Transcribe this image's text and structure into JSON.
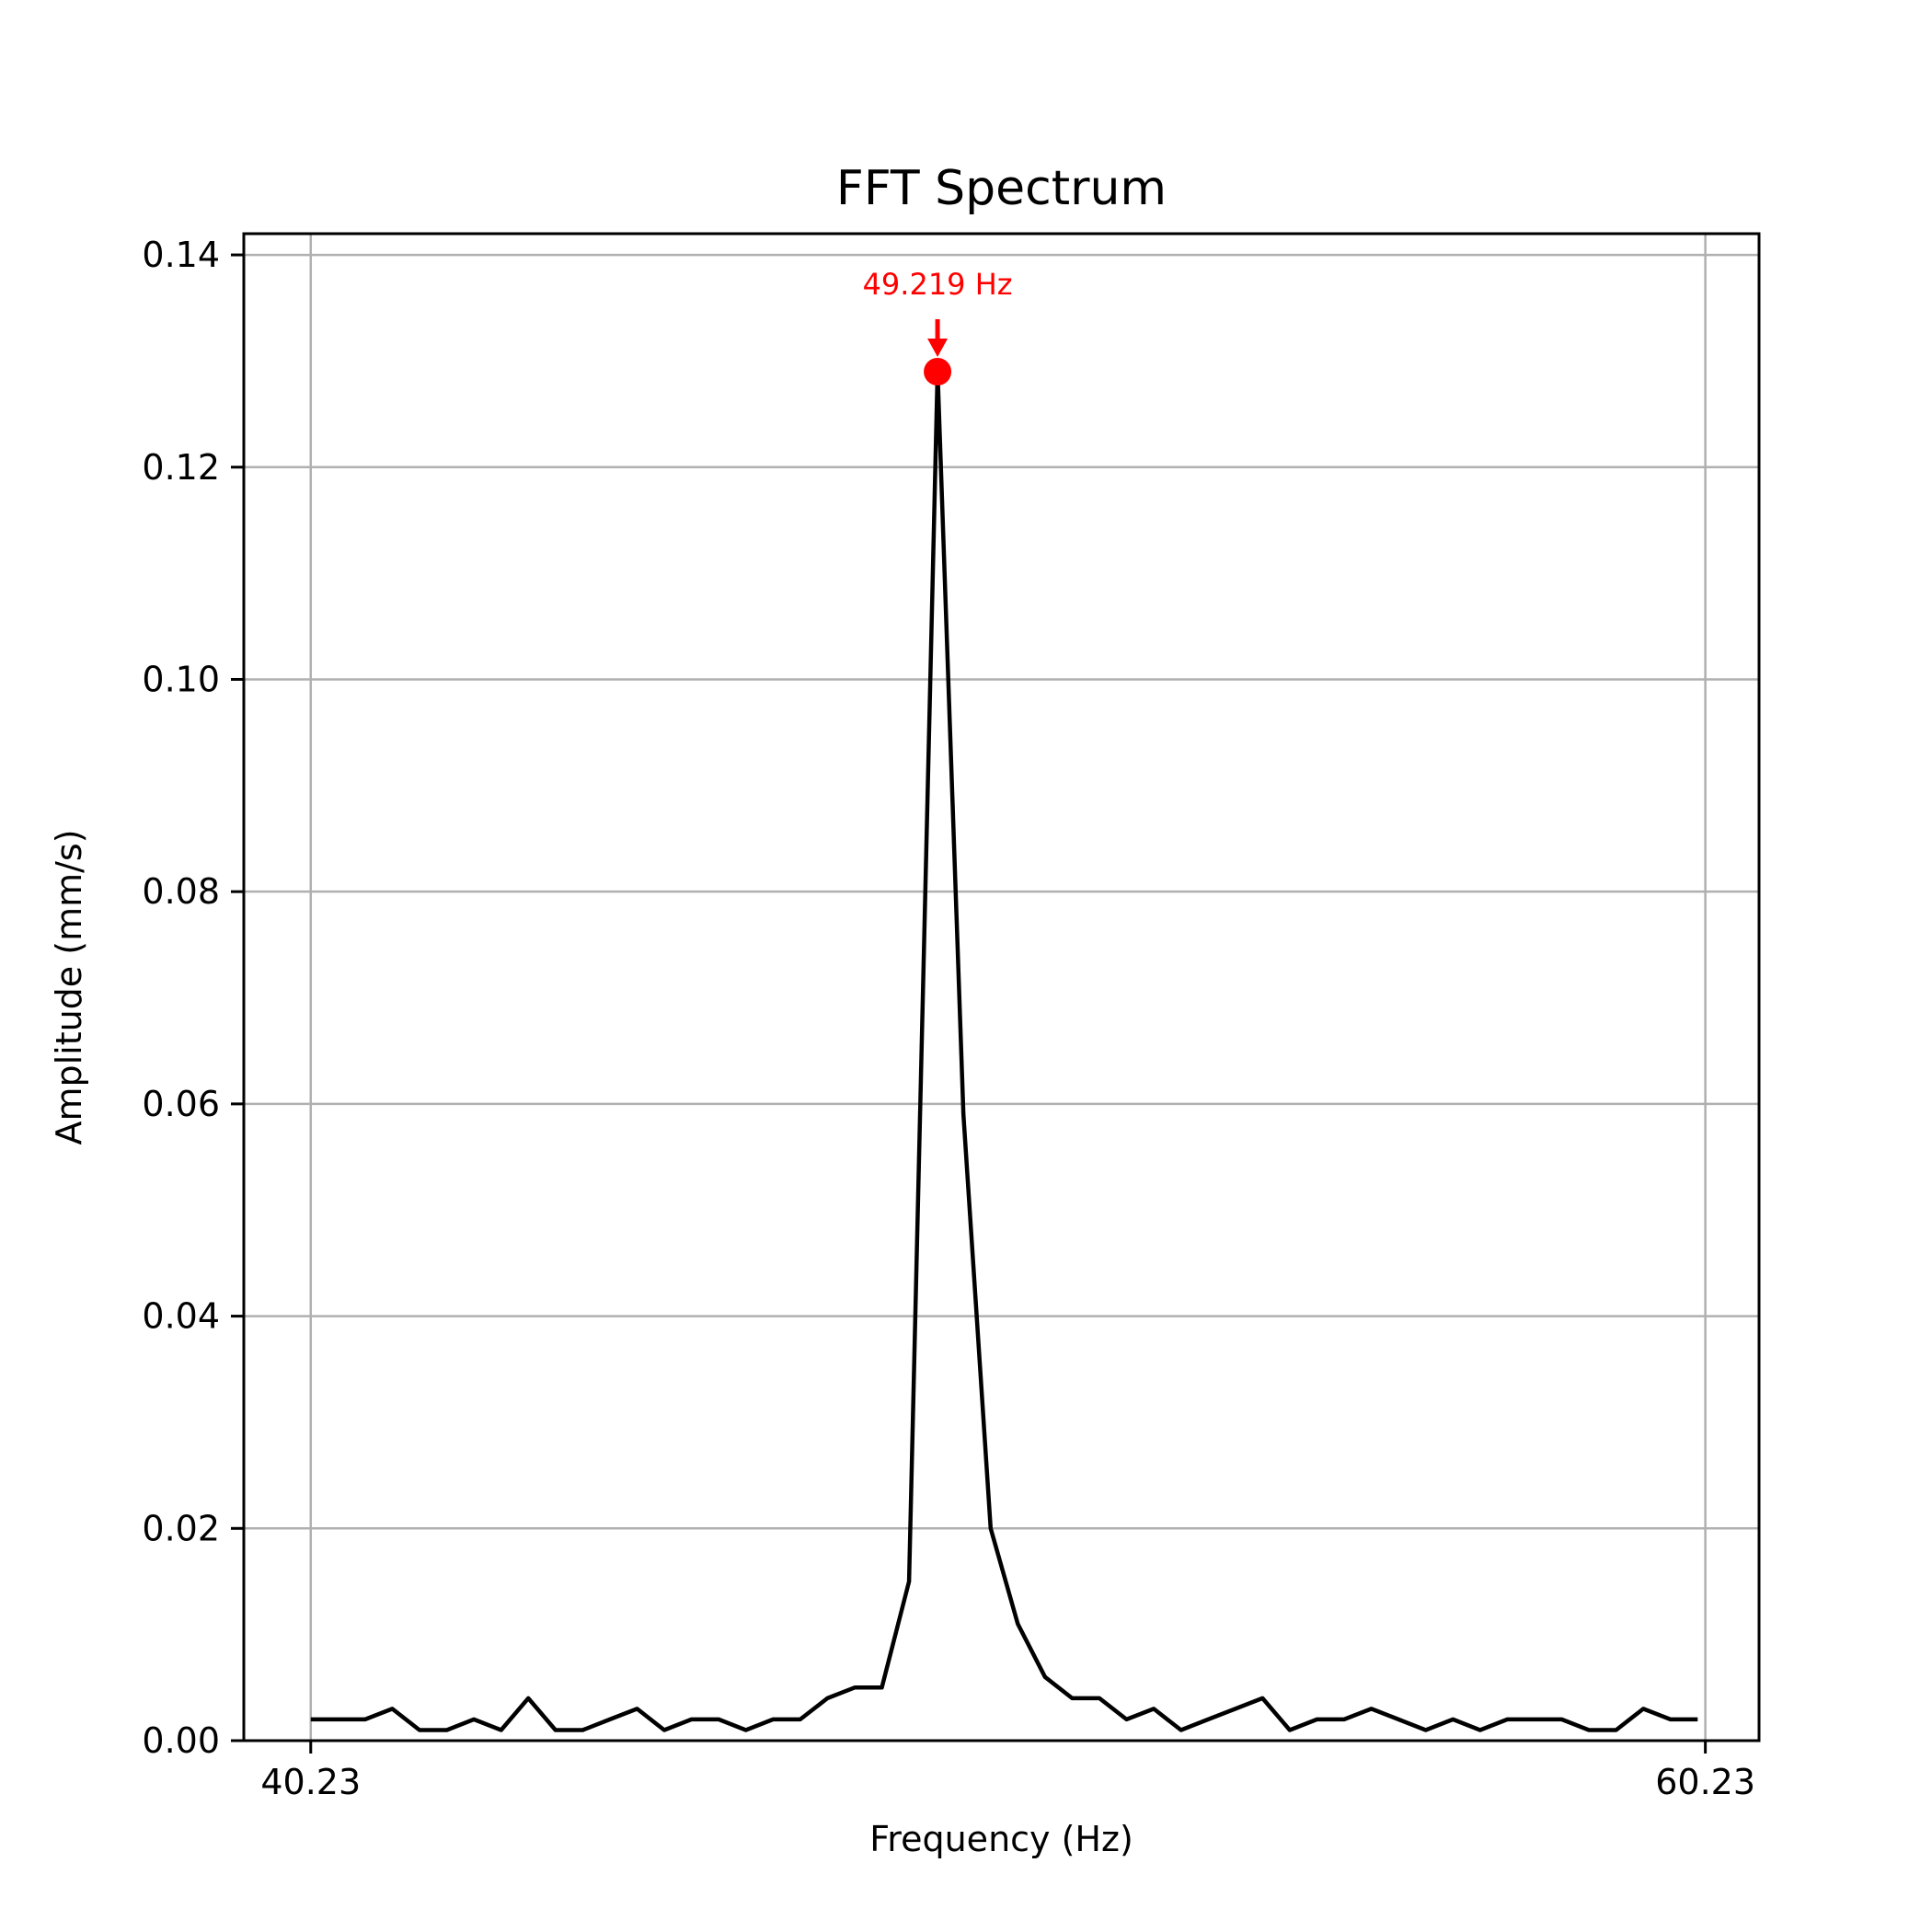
{
  "chart_data": {
    "type": "line",
    "title": "FFT Spectrum",
    "xlabel": "Frequency (Hz)",
    "ylabel": "Amplitude (mm/s)",
    "xlim": [
      39.27,
      61.0
    ],
    "ylim": [
      0,
      0.142
    ],
    "grid": true,
    "xticks": [
      40.23,
      60.23
    ],
    "xtick_labels": [
      "40.23",
      "60.23"
    ],
    "yticks": [
      0,
      0.02,
      0.04,
      0.06,
      0.08,
      0.1,
      0.12,
      0.14
    ],
    "ytick_labels": [
      "0.00",
      "0.02",
      "0.04",
      "0.06",
      "0.08",
      "0.10",
      "0.12",
      "0.14"
    ],
    "series": [
      {
        "color": "#000000",
        "x": [
          40.23,
          40.62,
          41.01,
          41.4,
          41.79,
          42.18,
          42.57,
          42.96,
          43.35,
          43.74,
          44.13,
          44.52,
          44.91,
          45.3,
          45.69,
          46.08,
          46.47,
          46.86,
          47.25,
          47.64,
          48.03,
          48.42,
          48.81,
          49.219,
          49.59,
          49.98,
          50.37,
          50.76,
          51.15,
          51.54,
          51.93,
          52.32,
          52.71,
          53.1,
          53.49,
          53.88,
          54.27,
          54.66,
          55.05,
          55.44,
          55.83,
          56.22,
          56.61,
          57.0,
          57.39,
          57.78,
          58.17,
          58.56,
          58.95,
          59.34,
          59.73,
          60.12
        ],
        "y": [
          0.002,
          0.002,
          0.002,
          0.003,
          0.001,
          0.001,
          0.002,
          0.001,
          0.004,
          0.001,
          0.001,
          0.002,
          0.003,
          0.001,
          0.002,
          0.002,
          0.001,
          0.002,
          0.002,
          0.004,
          0.005,
          0.005,
          0.015,
          0.129,
          0.059,
          0.02,
          0.011,
          0.006,
          0.004,
          0.004,
          0.002,
          0.003,
          0.001,
          0.002,
          0.003,
          0.004,
          0.001,
          0.002,
          0.002,
          0.003,
          0.002,
          0.001,
          0.002,
          0.001,
          0.002,
          0.002,
          0.002,
          0.001,
          0.001,
          0.003,
          0.002,
          0.002
        ]
      }
    ],
    "peak": {
      "x": 49.219,
      "y": 0.129,
      "label": "49.219 Hz",
      "color": "#ff0000"
    }
  }
}
